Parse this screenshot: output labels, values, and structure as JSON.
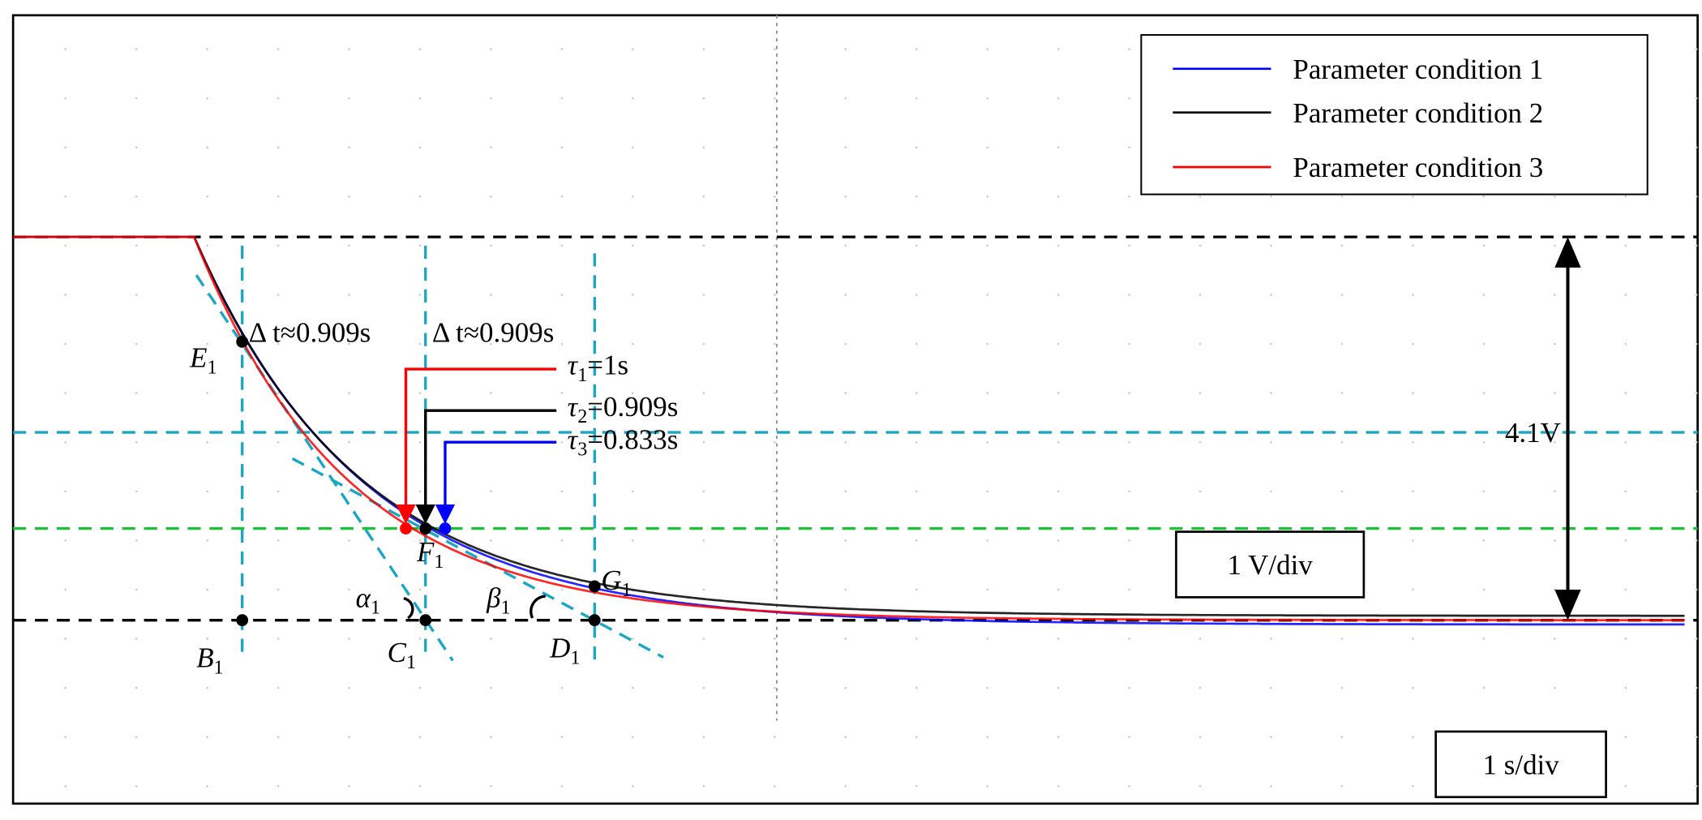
{
  "legend": [
    {
      "name": "Parameter condition 1",
      "color": "#0000ff"
    },
    {
      "name": "Parameter condition 2",
      "color": "#000000"
    },
    {
      "name": "Parameter condition 3",
      "color": "#ff0000"
    }
  ],
  "interval_labels": [
    "Δ t≈0.909s",
    "Δ t≈0.909s"
  ],
  "time_constants": [
    {
      "symbol": "τ",
      "sub": "1",
      "text": "=1s"
    },
    {
      "symbol": "τ",
      "sub": "2",
      "text": "=0.909s"
    },
    {
      "symbol": "τ",
      "sub": "3",
      "text": "=0.833s"
    }
  ],
  "points": [
    {
      "symbol": "E",
      "sub": "1"
    },
    {
      "symbol": "F",
      "sub": "1"
    },
    {
      "symbol": "G",
      "sub": "1"
    },
    {
      "symbol": "B",
      "sub": "1"
    },
    {
      "symbol": "C",
      "sub": "1"
    },
    {
      "symbol": "D",
      "sub": "1"
    }
  ],
  "angles": [
    {
      "symbol": "α",
      "sub": "1"
    },
    {
      "symbol": "β",
      "sub": "1"
    }
  ],
  "amplitude": "4.1V",
  "vertical_scale": "1 V/div",
  "horizontal_scale": "1 s/div"
}
